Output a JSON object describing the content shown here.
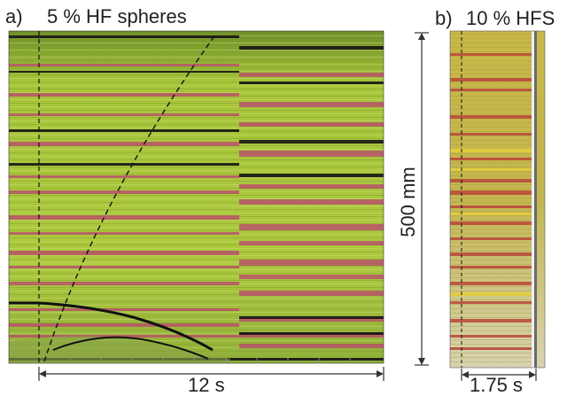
{
  "panel_a": {
    "label": "a)",
    "title": "5 % HF spheres",
    "time_scale": "12 s"
  },
  "panel_b": {
    "label": "b)",
    "title": "10 % HFS",
    "time_scale": "1.75 s"
  },
  "height_scale": "500 mm",
  "colors": {
    "background_green": "#a9c93a",
    "band_pink": "#b8516a",
    "band_dark": "#141414",
    "panel_b_base": "#bdb44a",
    "panel_b_red": "#b8473a",
    "panel_b_yellow": "#e3cc3e"
  }
}
